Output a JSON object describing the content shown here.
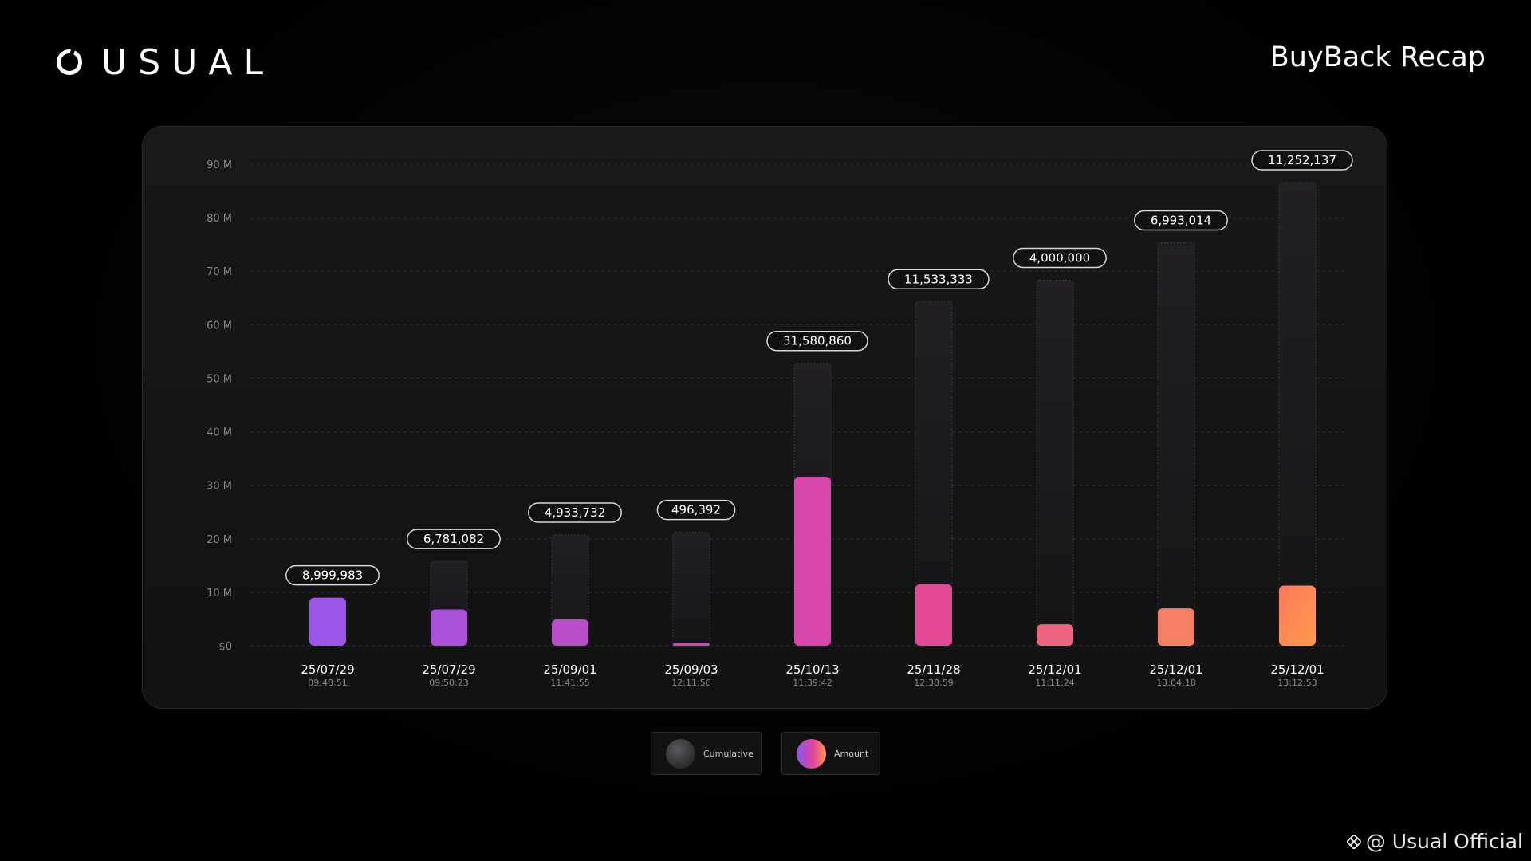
{
  "header": {
    "brand": "USUAL",
    "title": "BuyBack Recap"
  },
  "colors": {
    "background": "#000000",
    "panel": "#161617",
    "cumulative": "#1c1b1e",
    "amount_start": "#9b55e8",
    "amount_mid": "#e0449c",
    "amount_end": "#ff9a4a"
  },
  "chart_data": {
    "type": "bar",
    "y_ticks": [
      "$0",
      "10 M",
      "20 M",
      "30 M",
      "40 M",
      "50 M",
      "60 M",
      "70 M",
      "80 M",
      "90 M"
    ],
    "ylim": [
      0,
      90000000
    ],
    "grid": true,
    "categories": [
      {
        "date": "25/07/29",
        "time": "09:48:51"
      },
      {
        "date": "25/07/29",
        "time": "09:50:23"
      },
      {
        "date": "25/09/01",
        "time": "11:41:55"
      },
      {
        "date": "25/09/03",
        "time": "12:11:56"
      },
      {
        "date": "25/10/13",
        "time": "11:39:42"
      },
      {
        "date": "25/11/28",
        "time": "12:38:59"
      },
      {
        "date": "25/12/01",
        "time": "11:11:24"
      },
      {
        "date": "25/12/01",
        "time": "13:04:18"
      },
      {
        "date": "25/12/01",
        "time": "13:12:53"
      }
    ],
    "labels": [
      "8,999,983",
      "6,781,082",
      "4,933,732",
      "496,392",
      "31,580,860",
      "11,533,333",
      "4,000,000",
      "6,993,014",
      "11,252,137"
    ],
    "series": [
      {
        "name": "Amount",
        "values": [
          8999983,
          6781082,
          4933732,
          496392,
          31580860,
          11533333,
          4000000,
          6993014,
          11252137
        ]
      },
      {
        "name": "Cumulative",
        "values": [
          8999983,
          15781065,
          20714797,
          21211189,
          52792049,
          64325382,
          68325382,
          75318396,
          86570533
        ]
      }
    ],
    "legend": [
      "Cumulative",
      "Amount"
    ],
    "legend_position": "bottom-center"
  },
  "footer": {
    "watermark": "@ Usual Official"
  }
}
